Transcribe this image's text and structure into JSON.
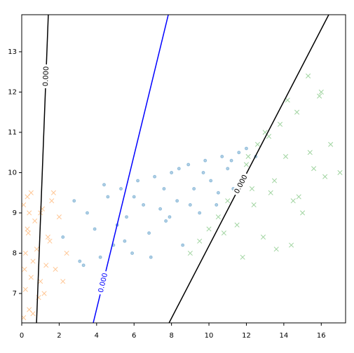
{
  "chart_data": {
    "type": "scatter",
    "xlim": [
      0,
      17.3
    ],
    "ylim": [
      6.27,
      13.92
    ],
    "xticks": [
      0,
      2,
      4,
      6,
      8,
      10,
      12,
      14,
      16
    ],
    "yticks": [
      7,
      8,
      9,
      10,
      11,
      12,
      13
    ],
    "series": [
      {
        "color": "#1f77b4",
        "marker": "o",
        "x": [
          2.2,
          2.8,
          3.1,
          3.5,
          3.9,
          4.2,
          4.6,
          4.9,
          5.3,
          5.6,
          5.9,
          6.2,
          6.5,
          6.8,
          7.1,
          7.4,
          7.7,
          8.0,
          8.3,
          8.6,
          8.9,
          9.2,
          9.5,
          9.8,
          10.1,
          10.4,
          10.7,
          11.0,
          11.3,
          11.6,
          3.3,
          4.4,
          5.1,
          6.0,
          6.9,
          7.6,
          8.4,
          9.0,
          9.7,
          10.5,
          11.2,
          12.0,
          12.5,
          5.5,
          7.9
        ],
        "y": [
          8.4,
          9.3,
          7.8,
          9.0,
          8.6,
          7.9,
          9.4,
          8.2,
          9.6,
          8.9,
          8.0,
          9.8,
          9.2,
          8.5,
          9.9,
          9.1,
          8.8,
          10.0,
          9.3,
          8.2,
          10.2,
          9.6,
          9.0,
          10.3,
          9.8,
          9.2,
          10.4,
          10.1,
          9.6,
          10.5,
          7.7,
          9.7,
          8.7,
          9.4,
          7.9,
          9.6,
          10.1,
          9.2,
          10.0,
          9.5,
          10.3,
          10.6,
          10.4,
          8.3,
          8.9
        ]
      },
      {
        "color": "#ff7f0e",
        "marker": "x",
        "x": [
          0.1,
          0.2,
          0.3,
          0.4,
          0.5,
          0.6,
          0.8,
          1.0,
          1.2,
          1.4,
          1.6,
          1.8,
          2.0,
          2.2,
          2.4,
          0.1,
          0.3,
          0.5,
          0.7,
          0.9,
          1.1,
          1.3,
          1.5,
          0.2,
          0.4,
          0.6,
          1.0,
          1.7,
          0.15,
          0.35
        ],
        "y": [
          9.2,
          7.1,
          8.6,
          6.6,
          9.5,
          7.8,
          8.1,
          9.0,
          7.0,
          8.4,
          9.3,
          7.6,
          8.9,
          7.3,
          8.0,
          6.4,
          9.4,
          7.4,
          8.8,
          6.9,
          9.1,
          7.7,
          8.3,
          8.0,
          9.0,
          6.5,
          7.3,
          9.5,
          7.6,
          8.5
        ]
      },
      {
        "color": "#2ca02c",
        "marker": "x",
        "x": [
          9.0,
          9.5,
          10.0,
          10.5,
          11.0,
          11.5,
          12.0,
          12.3,
          12.6,
          12.9,
          13.2,
          13.5,
          13.8,
          14.1,
          14.4,
          14.7,
          15.0,
          15.3,
          15.6,
          15.9,
          16.2,
          16.5,
          17.0,
          11.8,
          12.4,
          13.0,
          13.6,
          14.2,
          14.8,
          15.4,
          16.0,
          13.3,
          12.1,
          14.5,
          10.8
        ],
        "y": [
          8.0,
          8.3,
          8.6,
          8.9,
          9.3,
          8.7,
          10.2,
          9.6,
          10.7,
          8.4,
          10.9,
          9.8,
          11.2,
          10.4,
          8.2,
          11.5,
          9.0,
          12.4,
          10.1,
          11.9,
          9.9,
          10.7,
          10.0,
          7.9,
          9.2,
          11.0,
          8.1,
          11.8,
          9.4,
          10.5,
          12.0,
          9.5,
          10.4,
          9.3,
          8.5
        ]
      }
    ],
    "contours": [
      {
        "level": 0,
        "label": "0.000",
        "color": "#000000",
        "x": [
          0.79,
          1.42
        ],
        "y": [
          6.27,
          13.92
        ]
      },
      {
        "level": 0,
        "label": "0.000",
        "color": "#0000ff",
        "x": [
          3.82,
          7.83
        ],
        "y": [
          6.27,
          13.92
        ]
      },
      {
        "level": 0,
        "label": "0.000",
        "color": "#000000",
        "x": [
          7.87,
          16.4
        ],
        "y": [
          6.27,
          13.92
        ]
      }
    ]
  }
}
